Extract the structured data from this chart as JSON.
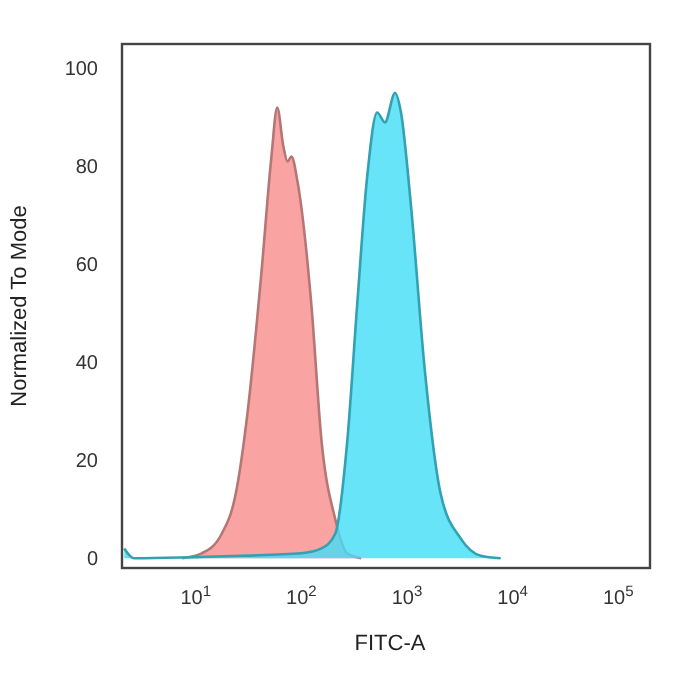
{
  "chart_data": {
    "type": "area",
    "xlabel": "FITC-A",
    "ylabel": "Normalized To Mode",
    "log": "x",
    "grid": false,
    "xlim": [
      2,
      200000
    ],
    "ylim": [
      -2,
      105
    ],
    "xticks": [
      {
        "value": 10,
        "label": "10$^{1}$"
      },
      {
        "value": 100,
        "label": "10$^{2}$"
      },
      {
        "value": 1000,
        "label": "10$^{3}$"
      },
      {
        "value": 10000,
        "label": "10$^{4}$"
      },
      {
        "value": 100000,
        "label": "10$^{5}$"
      }
    ],
    "yticks": [
      0,
      20,
      40,
      60,
      80,
      100
    ],
    "series": [
      {
        "color": "#f9a3a3",
        "x": [
          7.4,
          11.4,
          17.6,
          23.8,
          31,
          41.7,
          52,
          59,
          67.6,
          73.8,
          80.5,
          91.7,
          124,
          155,
          209,
          271,
          368
        ],
        "values": [
          0,
          1,
          5,
          13,
          30,
          58,
          82,
          92,
          84,
          81,
          82,
          77,
          52,
          24,
          8,
          1,
          0
        ]
      },
      {
        "color": "#45def5",
        "x": [
          2.1,
          2.6,
          27,
          100,
          155,
          209,
          272,
          338,
          420,
          521,
          618,
          770,
          877,
          1090,
          1480,
          2090,
          3230,
          4990,
          7710
        ],
        "values": [
          2,
          0,
          0.5,
          1,
          2,
          5,
          24,
          52,
          78,
          91,
          89,
          95,
          91,
          72,
          38,
          13,
          4,
          0.5,
          0
        ]
      }
    ]
  }
}
